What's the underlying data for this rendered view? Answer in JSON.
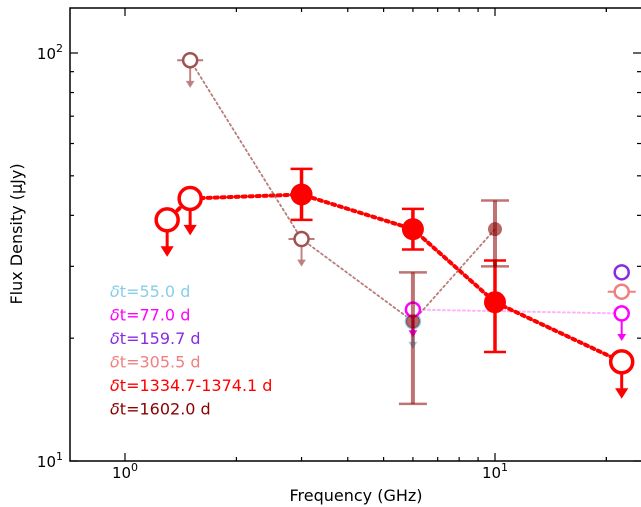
{
  "chart_data": {
    "type": "scatter",
    "title": "",
    "xlabel": "Frequency (GHz)",
    "ylabel": "Flux Density (μJy)",
    "xscale": "log",
    "yscale": "log",
    "xlim": [
      0.75,
      23
    ],
    "ylim": [
      10,
      135
    ],
    "x_ticks": [
      {
        "value": 1,
        "label": "10^0",
        "base": "10",
        "exp": "0"
      },
      {
        "value": 10,
        "label": "10^1",
        "base": "10",
        "exp": "1"
      }
    ],
    "y_ticks": [
      {
        "value": 10,
        "label": "10^1",
        "base": "10",
        "exp": "1"
      },
      {
        "value": 100,
        "label": "10^2",
        "base": "10",
        "exp": "2"
      }
    ],
    "legend_position": "left",
    "series": [
      {
        "name": "δt=55.0 d",
        "prefix": "δ",
        "rest": "t=55.0 d",
        "color": "#87ceeb",
        "line": "dotted",
        "points": [
          {
            "x": 6.0,
            "y": 22,
            "upper_limit": true,
            "hollow": true
          }
        ]
      },
      {
        "name": "δt=77.0 d",
        "prefix": "δ",
        "rest": "t=77.0 d",
        "color": "#ff00ff",
        "line": "dotted",
        "points": [
          {
            "x": 6.0,
            "y": 23.5,
            "upper_limit": true,
            "hollow": true
          },
          {
            "x": 22.0,
            "y": 23,
            "upper_limit": true,
            "hollow": true
          }
        ]
      },
      {
        "name": "δt=159.7 d",
        "prefix": "δ",
        "rest": "t=159.7 d",
        "color": "#8a2be2",
        "line": "none",
        "points": [
          {
            "x": 22.0,
            "y": 29,
            "upper_limit": false,
            "hollow": true
          }
        ]
      },
      {
        "name": "δt=305.5 d",
        "prefix": "δ",
        "rest": "t=305.5 d",
        "color": "#f08080",
        "line": "none",
        "points": [
          {
            "x": 22.0,
            "y": 26,
            "upper_limit": false,
            "hollow": true
          }
        ]
      },
      {
        "name": "δt=1334.7-1374.1 d",
        "prefix": "δ",
        "rest": "t=1334.7-1374.1 d",
        "color": "#ff0000",
        "line": "dotted",
        "points": [
          {
            "x": 1.3,
            "y": 39,
            "upper_limit": true,
            "hollow": true
          },
          {
            "x": 1.5,
            "y": 44,
            "upper_limit": true,
            "hollow": true
          },
          {
            "x": 3.0,
            "y": 45,
            "err_low": 39,
            "err_high": 52
          },
          {
            "x": 6.0,
            "y": 37,
            "err_low": 33,
            "err_high": 41.5
          },
          {
            "x": 10.0,
            "y": 24.5,
            "err_low": 18.5,
            "err_high": 31
          },
          {
            "x": 22.0,
            "y": 17.5,
            "upper_limit": true,
            "hollow": true
          }
        ]
      },
      {
        "name": "δt=1602.0 d",
        "prefix": "δ",
        "rest": "t=1602.0 d",
        "color": "#8b0000",
        "line": "dotted",
        "points": [
          {
            "x": 1.5,
            "y": 96,
            "upper_limit": true,
            "hollow": true
          },
          {
            "x": 3.0,
            "y": 35,
            "upper_limit": true,
            "hollow": true
          },
          {
            "x": 6.0,
            "y": 22,
            "err_low": 13.8,
            "err_high": 29
          },
          {
            "x": 10.0,
            "y": 37,
            "err_low": 30,
            "err_high": 43.5
          }
        ]
      }
    ]
  }
}
